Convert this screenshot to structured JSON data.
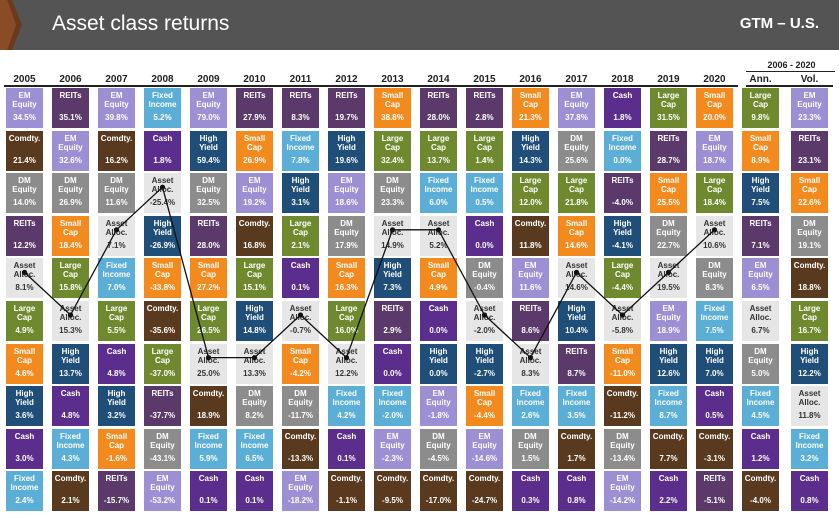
{
  "header": {
    "title": "Asset class returns",
    "region": "GTM – U.S."
  },
  "chart_data": {
    "type": "table",
    "period_label": "2006 - 2020",
    "columns": [
      "2005",
      "2006",
      "2007",
      "2008",
      "2009",
      "2010",
      "2011",
      "2012",
      "2013",
      "2014",
      "2015",
      "2016",
      "2017",
      "2018",
      "2019",
      "2020",
      "Ann.",
      "Vol."
    ],
    "colors": {
      "EM Equity": "#9c8fd4",
      "REITs": "#5b3a6b",
      "Comdty.": "#5a3a1e",
      "DM Equity": "#8c8c8c",
      "Asset Alloc.": "#e6e6e6",
      "Large Cap": "#6f8a2e",
      "Small Cap": "#f28a1e",
      "High Yield": "#1f4e79",
      "Fixed Income": "#5bafd6",
      "Cash": "#5b2d8c"
    },
    "grid": [
      [
        [
          "EM Equity",
          "34.5%"
        ],
        [
          "REITs",
          "35.1%"
        ],
        [
          "EM Equity",
          "39.8%"
        ],
        [
          "Fixed Income",
          "5.2%"
        ],
        [
          "EM Equity",
          "79.0%"
        ],
        [
          "REITs",
          "27.9%"
        ],
        [
          "REITs",
          "8.3%"
        ],
        [
          "REITs",
          "19.7%"
        ],
        [
          "Small Cap",
          "38.8%"
        ],
        [
          "REITs",
          "28.0%"
        ],
        [
          "REITs",
          "2.8%"
        ],
        [
          "Small Cap",
          "21.3%"
        ],
        [
          "EM Equity",
          "37.8%"
        ],
        [
          "Cash",
          "1.8%"
        ],
        [
          "Large Cap",
          "31.5%"
        ],
        [
          "Small Cap",
          "20.0%"
        ],
        [
          "Large Cap",
          "9.8%"
        ],
        [
          "EM Equity",
          "23.3%"
        ]
      ],
      [
        [
          "Comdty.",
          "21.4%"
        ],
        [
          "EM Equity",
          "32.6%"
        ],
        [
          "Comdty.",
          "16.2%"
        ],
        [
          "Cash",
          "1.8%"
        ],
        [
          "High Yield",
          "59.4%"
        ],
        [
          "Small Cap",
          "26.9%"
        ],
        [
          "Fixed Income",
          "7.8%"
        ],
        [
          "High Yield",
          "19.6%"
        ],
        [
          "Large Cap",
          "32.4%"
        ],
        [
          "Large Cap",
          "13.7%"
        ],
        [
          "Large Cap",
          "1.4%"
        ],
        [
          "High Yield",
          "14.3%"
        ],
        [
          "DM Equity",
          "25.6%"
        ],
        [
          "Fixed Income",
          "0.0%"
        ],
        [
          "REITs",
          "28.7%"
        ],
        [
          "EM Equity",
          "18.7%"
        ],
        [
          "Small Cap",
          "8.9%"
        ],
        [
          "REITs",
          "23.1%"
        ]
      ],
      [
        [
          "DM Equity",
          "14.0%"
        ],
        [
          "DM Equity",
          "26.9%"
        ],
        [
          "DM Equity",
          "11.6%"
        ],
        [
          "Asset Alloc.",
          "-25.4%"
        ],
        [
          "DM Equity",
          "32.5%"
        ],
        [
          "EM Equity",
          "19.2%"
        ],
        [
          "High Yield",
          "3.1%"
        ],
        [
          "EM Equity",
          "18.6%"
        ],
        [
          "DM Equity",
          "23.3%"
        ],
        [
          "Fixed Income",
          "6.0%"
        ],
        [
          "Fixed Income",
          "0.5%"
        ],
        [
          "Large Cap",
          "12.0%"
        ],
        [
          "Large Cap",
          "21.8%"
        ],
        [
          "REITs",
          "-4.0%"
        ],
        [
          "Small Cap",
          "25.5%"
        ],
        [
          "Large Cap",
          "18.4%"
        ],
        [
          "High Yield",
          "7.5%"
        ],
        [
          "Small Cap",
          "22.6%"
        ]
      ],
      [
        [
          "REITs",
          "12.2%"
        ],
        [
          "Small Cap",
          "18.4%"
        ],
        [
          "Asset Alloc.",
          "7.1%"
        ],
        [
          "High Yield",
          "-26.9%"
        ],
        [
          "REITs",
          "28.0%"
        ],
        [
          "Comdty.",
          "16.8%"
        ],
        [
          "Large Cap",
          "2.1%"
        ],
        [
          "DM Equity",
          "17.9%"
        ],
        [
          "Asset Alloc.",
          "14.9%"
        ],
        [
          "Asset Alloc.",
          "5.2%"
        ],
        [
          "Cash",
          "0.0%"
        ],
        [
          "Comdty.",
          "11.8%"
        ],
        [
          "Small Cap",
          "14.6%"
        ],
        [
          "High Yield",
          "-4.1%"
        ],
        [
          "DM Equity",
          "22.7%"
        ],
        [
          "Asset Alloc.",
          "10.6%"
        ],
        [
          "REITs",
          "7.1%"
        ],
        [
          "DM Equity",
          "19.1%"
        ]
      ],
      [
        [
          "Asset Alloc.",
          "8.1%"
        ],
        [
          "Large Cap",
          "15.8%"
        ],
        [
          "Fixed Income",
          "7.0%"
        ],
        [
          "Small Cap",
          "-33.8%"
        ],
        [
          "Small Cap",
          "27.2%"
        ],
        [
          "Large Cap",
          "15.1%"
        ],
        [
          "Cash",
          "0.1%"
        ],
        [
          "Small Cap",
          "16.3%"
        ],
        [
          "High Yield",
          "7.3%"
        ],
        [
          "Small Cap",
          "4.9%"
        ],
        [
          "DM Equity",
          "-0.4%"
        ],
        [
          "EM Equity",
          "11.6%"
        ],
        [
          "Asset Alloc.",
          "14.6%"
        ],
        [
          "Large Cap",
          "-4.4%"
        ],
        [
          "Asset Alloc.",
          "19.5%"
        ],
        [
          "DM Equity",
          "8.3%"
        ],
        [
          "EM Equity",
          "6.5%"
        ],
        [
          "Comdty.",
          "18.8%"
        ]
      ],
      [
        [
          "Large Cap",
          "4.9%"
        ],
        [
          "Asset Alloc.",
          "15.3%"
        ],
        [
          "Large Cap",
          "5.5%"
        ],
        [
          "Comdty.",
          "-35.6%"
        ],
        [
          "Large Cap",
          "26.5%"
        ],
        [
          "High Yield",
          "14.8%"
        ],
        [
          "Asset Alloc.",
          "-0.7%"
        ],
        [
          "Large Cap",
          "16.0%"
        ],
        [
          "REITs",
          "2.9%"
        ],
        [
          "Cash",
          "0.0%"
        ],
        [
          "Asset Alloc.",
          "-2.0%"
        ],
        [
          "REITs",
          "8.6%"
        ],
        [
          "High Yield",
          "10.4%"
        ],
        [
          "Asset Alloc.",
          "-5.8%"
        ],
        [
          "EM Equity",
          "18.9%"
        ],
        [
          "Fixed Income",
          "7.5%"
        ],
        [
          "Asset Alloc.",
          "6.7%"
        ],
        [
          "Large Cap",
          "16.7%"
        ]
      ],
      [
        [
          "Small Cap",
          "4.6%"
        ],
        [
          "High Yield",
          "13.7%"
        ],
        [
          "Cash",
          "4.8%"
        ],
        [
          "Large Cap",
          "-37.0%"
        ],
        [
          "Asset Alloc.",
          "25.0%"
        ],
        [
          "Asset Alloc.",
          "13.3%"
        ],
        [
          "Small Cap",
          "-4.2%"
        ],
        [
          "Asset Alloc.",
          "12.2%"
        ],
        [
          "Cash",
          "0.0%"
        ],
        [
          "High Yield",
          "0.0%"
        ],
        [
          "High Yield",
          "-2.7%"
        ],
        [
          "Asset Alloc.",
          "8.3%"
        ],
        [
          "REITs",
          "8.7%"
        ],
        [
          "Small Cap",
          "-11.0%"
        ],
        [
          "High Yield",
          "12.6%"
        ],
        [
          "High Yield",
          "7.0%"
        ],
        [
          "DM Equity",
          "5.0%"
        ],
        [
          "High Yield",
          "12.2%"
        ]
      ],
      [
        [
          "High Yield",
          "3.6%"
        ],
        [
          "Cash",
          "4.8%"
        ],
        [
          "High Yield",
          "3.2%"
        ],
        [
          "REITs",
          "-37.7%"
        ],
        [
          "Comdty.",
          "18.9%"
        ],
        [
          "DM Equity",
          "8.2%"
        ],
        [
          "DM Equity",
          "-11.7%"
        ],
        [
          "Fixed Income",
          "4.2%"
        ],
        [
          "Fixed Income",
          "-2.0%"
        ],
        [
          "EM Equity",
          "-1.8%"
        ],
        [
          "Small Cap",
          "-4.4%"
        ],
        [
          "Fixed Income",
          "2.6%"
        ],
        [
          "Fixed Income",
          "3.5%"
        ],
        [
          "Comdty.",
          "-11.2%"
        ],
        [
          "Fixed Income",
          "8.7%"
        ],
        [
          "Cash",
          "0.5%"
        ],
        [
          "Fixed Income",
          "4.5%"
        ],
        [
          "Asset Alloc.",
          "11.8%"
        ]
      ],
      [
        [
          "Cash",
          "3.0%"
        ],
        [
          "Fixed Income",
          "4.3%"
        ],
        [
          "Small Cap",
          "-1.6%"
        ],
        [
          "DM Equity",
          "-43.1%"
        ],
        [
          "Fixed Income",
          "5.9%"
        ],
        [
          "Fixed Income",
          "6.5%"
        ],
        [
          "Comdty.",
          "-13.3%"
        ],
        [
          "Cash",
          "0.1%"
        ],
        [
          "EM Equity",
          "-2.3%"
        ],
        [
          "DM Equity",
          "-4.5%"
        ],
        [
          "EM Equity",
          "-14.6%"
        ],
        [
          "DM Equity",
          "1.5%"
        ],
        [
          "Comdty.",
          "1.7%"
        ],
        [
          "DM Equity",
          "-13.4%"
        ],
        [
          "Comdty.",
          "7.7%"
        ],
        [
          "Comdty.",
          "-3.1%"
        ],
        [
          "Cash",
          "1.2%"
        ],
        [
          "Fixed Income",
          "3.2%"
        ]
      ],
      [
        [
          "Fixed Income",
          "2.4%"
        ],
        [
          "Comdty.",
          "2.1%"
        ],
        [
          "REITs",
          "-15.7%"
        ],
        [
          "EM Equity",
          "-53.2%"
        ],
        [
          "Cash",
          "0.1%"
        ],
        [
          "Cash",
          "0.1%"
        ],
        [
          "EM Equity",
          "-18.2%"
        ],
        [
          "Comdty.",
          "-1.1%"
        ],
        [
          "Comdty.",
          "-9.5%"
        ],
        [
          "Comdty.",
          "-17.0%"
        ],
        [
          "Comdty.",
          "-24.7%"
        ],
        [
          "Cash",
          "0.3%"
        ],
        [
          "Cash",
          "0.8%"
        ],
        [
          "EM Equity",
          "-14.2%"
        ],
        [
          "Cash",
          "2.2%"
        ],
        [
          "REITs",
          "-5.1%"
        ],
        [
          "Comdty.",
          "-4.0%"
        ],
        [
          "Cash",
          "0.8%"
        ]
      ]
    ]
  }
}
